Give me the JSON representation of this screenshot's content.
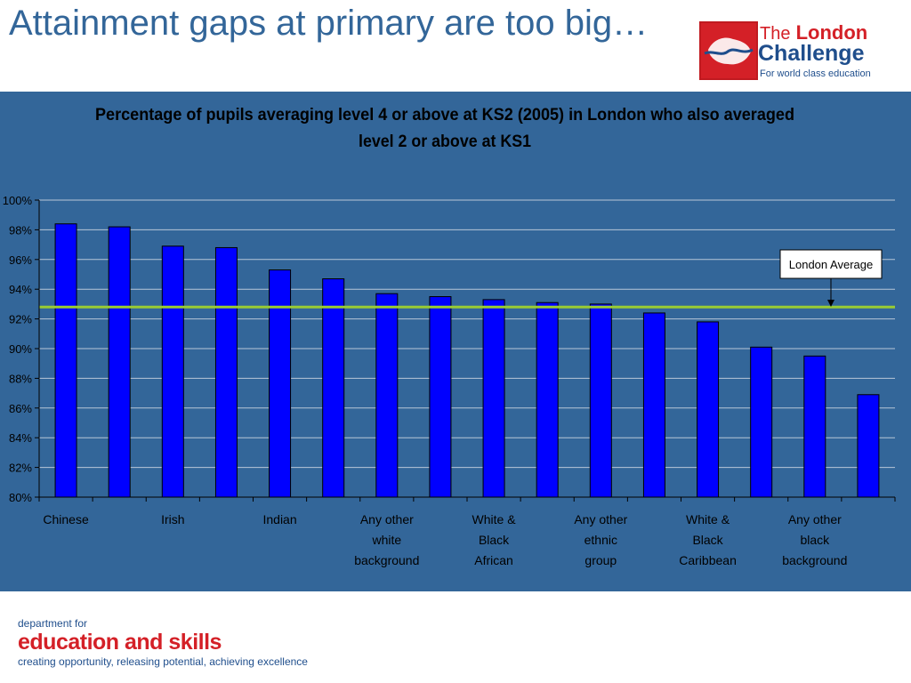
{
  "slide": {
    "title": "Attainment gaps at primary are too big…"
  },
  "logo": {
    "line1_the": "The",
    "line1_rest": "London",
    "line2": "Challenge",
    "line3": "For world class education"
  },
  "footer": {
    "line1": "department for",
    "line2": "education and skills",
    "line3": "creating opportunity, releasing potential, achieving excellence"
  },
  "colors": {
    "title": "#336699",
    "panel": "#336699",
    "bar": "#0000ff",
    "average_line": "#99cc33",
    "brand_red": "#d42027",
    "brand_blue": "#1f4e8c"
  },
  "chart_data": {
    "type": "bar",
    "title": "Percentage of pupils averaging level 4 or above at KS2 (2005) in London who also averaged level 2 or above at KS1",
    "title_lines": [
      "Percentage of pupils averaging level 4 or above at KS2 (2005) in London who also averaged",
      "level 2 or above at KS1"
    ],
    "values": [
      98.4,
      98.2,
      96.9,
      96.8,
      95.3,
      94.7,
      93.7,
      93.5,
      93.3,
      93.1,
      93.0,
      92.4,
      91.8,
      90.1,
      89.5,
      86.9
    ],
    "x_labels": [
      {
        "index": 0,
        "lines": [
          "Chinese"
        ]
      },
      {
        "index": 2,
        "lines": [
          "Irish"
        ]
      },
      {
        "index": 4,
        "lines": [
          "Indian"
        ]
      },
      {
        "index": 6,
        "lines": [
          "Any other",
          "white",
          "background"
        ]
      },
      {
        "index": 8,
        "lines": [
          "White &",
          "Black",
          "African"
        ]
      },
      {
        "index": 10,
        "lines": [
          "Any other",
          "ethnic",
          "group"
        ]
      },
      {
        "index": 12,
        "lines": [
          "White &",
          "Black",
          "Caribbean"
        ]
      },
      {
        "index": 14,
        "lines": [
          "Any other",
          "black",
          "background"
        ]
      }
    ],
    "y_ticks": [
      80,
      82,
      84,
      86,
      88,
      90,
      92,
      94,
      96,
      98,
      100
    ],
    "y_tick_labels": [
      "80%",
      "82%",
      "84%",
      "86%",
      "88%",
      "90%",
      "92%",
      "94%",
      "96%",
      "98%",
      "100%"
    ],
    "ylim": [
      80,
      100
    ],
    "grid": true,
    "reference_line": {
      "label": "London Average",
      "value": 92.8
    }
  }
}
